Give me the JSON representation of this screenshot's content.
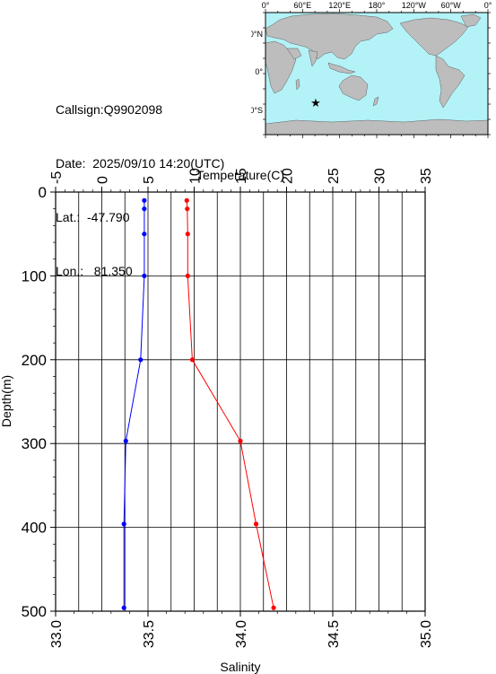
{
  "info": {
    "callsign": "Callsign:Q9902098",
    "date": "Date:  2025/09/10 14:20(UTC)",
    "lat": "Lat.:  -47.790",
    "lon": "Lon.:   81.350"
  },
  "map": {
    "lon_labels": [
      "0°",
      "60°E",
      "120°E",
      "180°",
      "120°W",
      "60°W",
      "0°"
    ],
    "lat_labels": [
      "60°N",
      "0°",
      "60°S"
    ],
    "marker": {
      "lat": -47.79,
      "lon": 81.35
    },
    "colors": {
      "ocean": "#b3f2f7",
      "land": "#bdbdbd",
      "marker": "#ff0000"
    }
  },
  "chart_data": {
    "type": "line",
    "ylabel": "Depth(m)",
    "ylim": [
      0,
      500
    ],
    "yticks": [
      0,
      100,
      200,
      300,
      400,
      500
    ],
    "y_inverted": true,
    "grid": true,
    "axes": {
      "top": {
        "label": "Temperature(C)",
        "range": [
          -5,
          35
        ],
        "ticks": [
          -5,
          0,
          5,
          10,
          15,
          20,
          25,
          30,
          35
        ]
      },
      "bottom": {
        "label": "Salinity",
        "range": [
          33.0,
          35.0
        ],
        "ticks": [
          "33.0",
          "33.5",
          "34.0",
          "34.5",
          "35.0"
        ]
      }
    },
    "series": [
      {
        "axis": "top",
        "color": "#ff0000",
        "depth": [
          10,
          20,
          50,
          100,
          200,
          297,
          396,
          496
        ],
        "values": [
          9.2,
          9.25,
          9.3,
          9.3,
          9.8,
          15.0,
          16.7,
          18.6
        ]
      },
      {
        "axis": "bottom",
        "color": "#0000ff",
        "depth": [
          10,
          20,
          50,
          100,
          200,
          297,
          396,
          496
        ],
        "values": [
          33.48,
          33.48,
          33.48,
          33.48,
          33.46,
          33.38,
          33.37,
          33.37
        ]
      }
    ]
  }
}
